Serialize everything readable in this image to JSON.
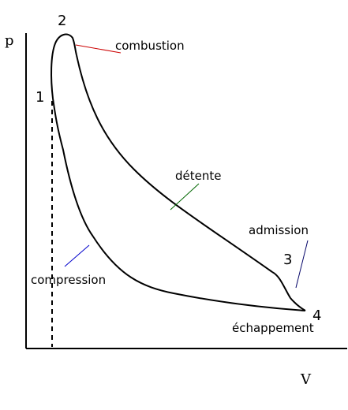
{
  "axes": {
    "y_label": "p",
    "x_label": "V"
  },
  "points": {
    "p1": "1",
    "p2": "2",
    "p3": "3",
    "p4": "4"
  },
  "phases": {
    "combustion": "combustion",
    "detente": "détente",
    "admission": "admission",
    "compression": "compression",
    "echappement": "échappement"
  },
  "colors": {
    "curve": "#000000",
    "combustion_leader": "#cc0000",
    "detente_leader": "#006600",
    "compression_leader": "#0000cc",
    "admission_leader": "#000066"
  }
}
